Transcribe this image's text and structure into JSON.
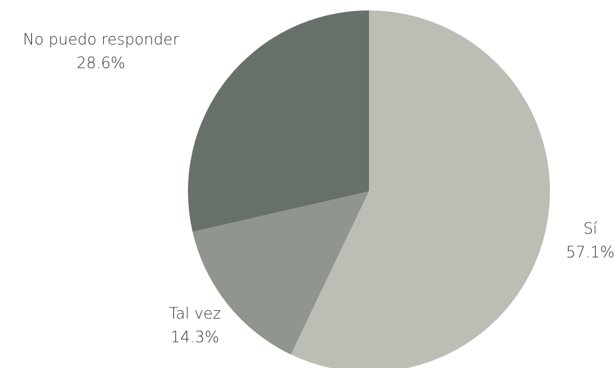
{
  "chart_data": {
    "type": "pie",
    "title": "",
    "start_angle": "12 o'clock",
    "direction": "clockwise",
    "slices": [
      {
        "label": "Sí",
        "value": 57.1,
        "value_label": "57.1%",
        "color": "#bcbdb4"
      },
      {
        "label": "Tal vez",
        "value": 14.3,
        "value_label": "14.3%",
        "color": "#90958f"
      },
      {
        "label": "No puedo responder",
        "value": 28.6,
        "value_label": "28.6%",
        "color": "#68706a"
      }
    ],
    "legend": "none"
  }
}
